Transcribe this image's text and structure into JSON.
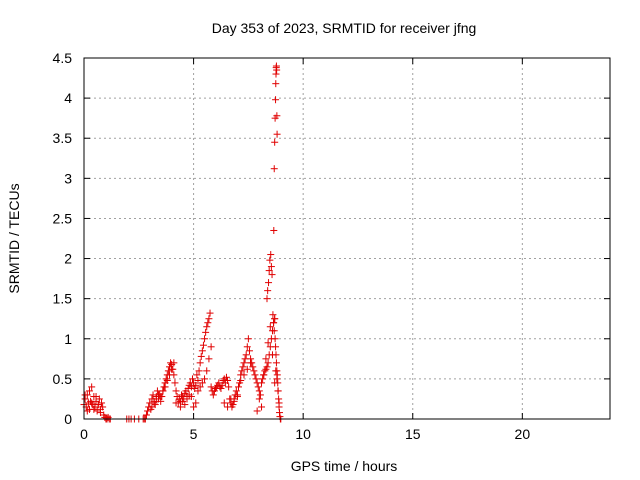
{
  "chart_data": {
    "type": "scatter",
    "title": "Day 353 of 2023, SRMTID for receiver jfng",
    "xlabel": "GPS time / hours",
    "ylabel": "SRMTID / TECUs",
    "xlim": [
      0,
      24
    ],
    "ylim": [
      0,
      4.5
    ],
    "xticks": [
      0,
      5,
      10,
      15,
      20
    ],
    "yticks": [
      0,
      0.5,
      1,
      1.5,
      2,
      2.5,
      3,
      3.5,
      4,
      4.5
    ],
    "xtick_labels": [
      "0",
      "5",
      "10",
      "15",
      "20"
    ],
    "ytick_labels": [
      "0",
      "0.5",
      "1",
      "1.5",
      "2",
      "2.5",
      "3",
      "3.5",
      "4",
      "4.5"
    ],
    "grid": true,
    "marker": "+",
    "color": "#e00000",
    "series": [
      {
        "name": "jfng",
        "x": [
          0.0,
          0.05,
          0.1,
          0.15,
          0.2,
          0.25,
          0.3,
          0.35,
          0.4,
          0.45,
          0.5,
          0.55,
          0.6,
          0.65,
          0.7,
          0.75,
          0.8,
          0.85,
          0.9,
          0.95,
          1.0,
          1.05,
          1.1,
          1.15,
          1.2,
          0.05,
          0.15,
          0.25,
          0.35,
          0.45,
          0.55,
          0.65,
          0.75,
          1.95,
          2.05,
          2.15,
          2.3,
          2.5,
          2.7,
          2.75,
          2.8,
          2.85,
          2.9,
          2.95,
          3.0,
          3.05,
          3.1,
          3.15,
          3.2,
          3.25,
          3.3,
          3.35,
          3.4,
          3.45,
          3.5,
          3.55,
          3.6,
          3.65,
          3.7,
          3.75,
          3.8,
          3.85,
          3.9,
          3.95,
          4.0,
          4.05,
          4.1,
          4.15,
          4.2,
          4.25,
          3.1,
          3.2,
          3.3,
          3.4,
          3.5,
          3.6,
          3.7,
          3.8,
          3.9,
          4.0,
          4.1,
          4.2,
          4.3,
          4.35,
          4.4,
          4.45,
          4.5,
          4.55,
          4.6,
          4.65,
          4.7,
          4.75,
          4.8,
          4.85,
          4.9,
          4.95,
          5.0,
          5.05,
          5.1,
          5.15,
          5.2,
          5.25,
          5.3,
          5.35,
          5.4,
          5.45,
          5.5,
          5.55,
          5.6,
          5.65,
          5.7,
          5.75,
          5.8,
          5.85,
          5.9,
          4.4,
          4.5,
          4.6,
          4.7,
          4.8,
          4.9,
          5.0,
          5.1,
          5.2,
          5.3,
          5.4,
          5.5,
          5.6,
          5.7,
          5.8,
          5.95,
          6.0,
          6.05,
          6.1,
          6.15,
          6.2,
          6.25,
          6.3,
          6.35,
          6.4,
          6.45,
          6.5,
          6.55,
          6.6,
          6.65,
          6.7,
          6.75,
          6.8,
          6.85,
          6.9,
          6.95,
          7.0,
          7.05,
          7.1,
          7.15,
          7.2,
          7.25,
          7.3,
          7.35,
          7.4,
          7.45,
          7.5,
          7.55,
          7.6,
          7.65,
          7.7,
          7.75,
          6.4,
          6.55,
          6.7,
          6.85,
          7.0,
          7.15,
          7.3,
          7.45,
          7.6,
          7.8,
          7.85,
          7.9,
          7.95,
          8.0,
          8.05,
          8.1,
          8.15,
          8.2,
          8.25,
          8.3,
          8.35,
          8.4,
          8.45,
          8.5,
          8.55,
          8.6,
          8.65,
          8.7,
          8.75,
          8.8,
          8.85,
          8.9,
          7.9,
          8.0,
          8.1,
          8.2,
          8.3,
          8.4,
          8.5,
          8.6,
          8.7,
          8.35,
          8.38,
          8.42,
          8.45,
          8.48,
          8.52,
          8.55,
          8.58,
          8.62,
          8.65,
          8.68,
          8.7,
          8.72,
          8.74,
          8.76,
          8.78,
          8.8,
          8.82,
          8.84,
          8.86,
          8.88,
          8.9,
          8.92,
          8.94,
          8.96,
          8.98,
          8.66,
          8.68,
          8.7,
          8.72,
          8.74,
          8.75,
          8.76,
          8.77,
          8.78,
          8.79,
          8.8,
          8.81
        ],
        "y": [
          0.18,
          0.25,
          0.15,
          0.3,
          0.2,
          0.12,
          0.22,
          0.4,
          0.18,
          0.28,
          0.15,
          0.22,
          0.1,
          0.18,
          0.25,
          0.12,
          0.2,
          0.15,
          0.05,
          0.02,
          0.0,
          0.0,
          0.02,
          0.0,
          0.0,
          0.3,
          0.1,
          0.35,
          0.2,
          0.12,
          0.28,
          0.18,
          0.08,
          0.0,
          0.0,
          0.0,
          0.0,
          0.0,
          0.0,
          0.0,
          0.0,
          0.05,
          0.1,
          0.15,
          0.2,
          0.12,
          0.25,
          0.3,
          0.22,
          0.18,
          0.28,
          0.35,
          0.25,
          0.3,
          0.22,
          0.28,
          0.35,
          0.4,
          0.45,
          0.5,
          0.55,
          0.6,
          0.65,
          0.7,
          0.68,
          0.62,
          0.55,
          0.45,
          0.35,
          0.28,
          0.15,
          0.2,
          0.25,
          0.3,
          0.28,
          0.35,
          0.4,
          0.48,
          0.55,
          0.62,
          0.7,
          0.2,
          0.2,
          0.25,
          0.22,
          0.3,
          0.28,
          0.25,
          0.32,
          0.35,
          0.28,
          0.38,
          0.42,
          0.45,
          0.4,
          0.5,
          0.45,
          0.38,
          0.42,
          0.55,
          0.48,
          0.6,
          0.7,
          0.78,
          0.85,
          0.92,
          1.0,
          1.08,
          1.15,
          1.2,
          1.25,
          1.32,
          0.4,
          0.35,
          0.3,
          0.15,
          0.22,
          0.18,
          0.25,
          0.3,
          0.28,
          0.15,
          0.2,
          0.35,
          0.4,
          0.45,
          0.5,
          0.6,
          0.75,
          0.9,
          0.35,
          0.38,
          0.4,
          0.42,
          0.45,
          0.4,
          0.38,
          0.42,
          0.48,
          0.5,
          0.45,
          0.52,
          0.48,
          0.4,
          0.25,
          0.2,
          0.15,
          0.18,
          0.25,
          0.3,
          0.35,
          0.28,
          0.4,
          0.45,
          0.55,
          0.6,
          0.65,
          0.7,
          0.75,
          0.8,
          0.9,
          1.0,
          0.85,
          0.75,
          0.7,
          0.65,
          0.6,
          0.2,
          0.15,
          0.25,
          0.22,
          0.3,
          0.48,
          0.55,
          0.62,
          0.7,
          0.55,
          0.5,
          0.45,
          0.4,
          0.35,
          0.3,
          0.45,
          0.5,
          0.55,
          0.6,
          0.62,
          0.65,
          0.7,
          0.8,
          0.9,
          1.0,
          1.1,
          1.2,
          1.25,
          0.6,
          0.5,
          0.35,
          0.2,
          0.1,
          0.25,
          0.15,
          0.55,
          0.75,
          0.95,
          1.15,
          0.8,
          0.45,
          1.5,
          1.6,
          1.7,
          1.85,
          1.98,
          2.05,
          1.9,
          1.8,
          1.3,
          1.2,
          1.1,
          1.25,
          1.0,
          0.9,
          0.8,
          0.7,
          0.6,
          0.55,
          0.45,
          0.35,
          0.25,
          0.15,
          0.08,
          0.03,
          0.0,
          0.0,
          2.35,
          3.12,
          3.45,
          3.75,
          3.98,
          4.18,
          4.3,
          4.38,
          4.4,
          4.35,
          3.78,
          3.55
        ]
      }
    ]
  }
}
